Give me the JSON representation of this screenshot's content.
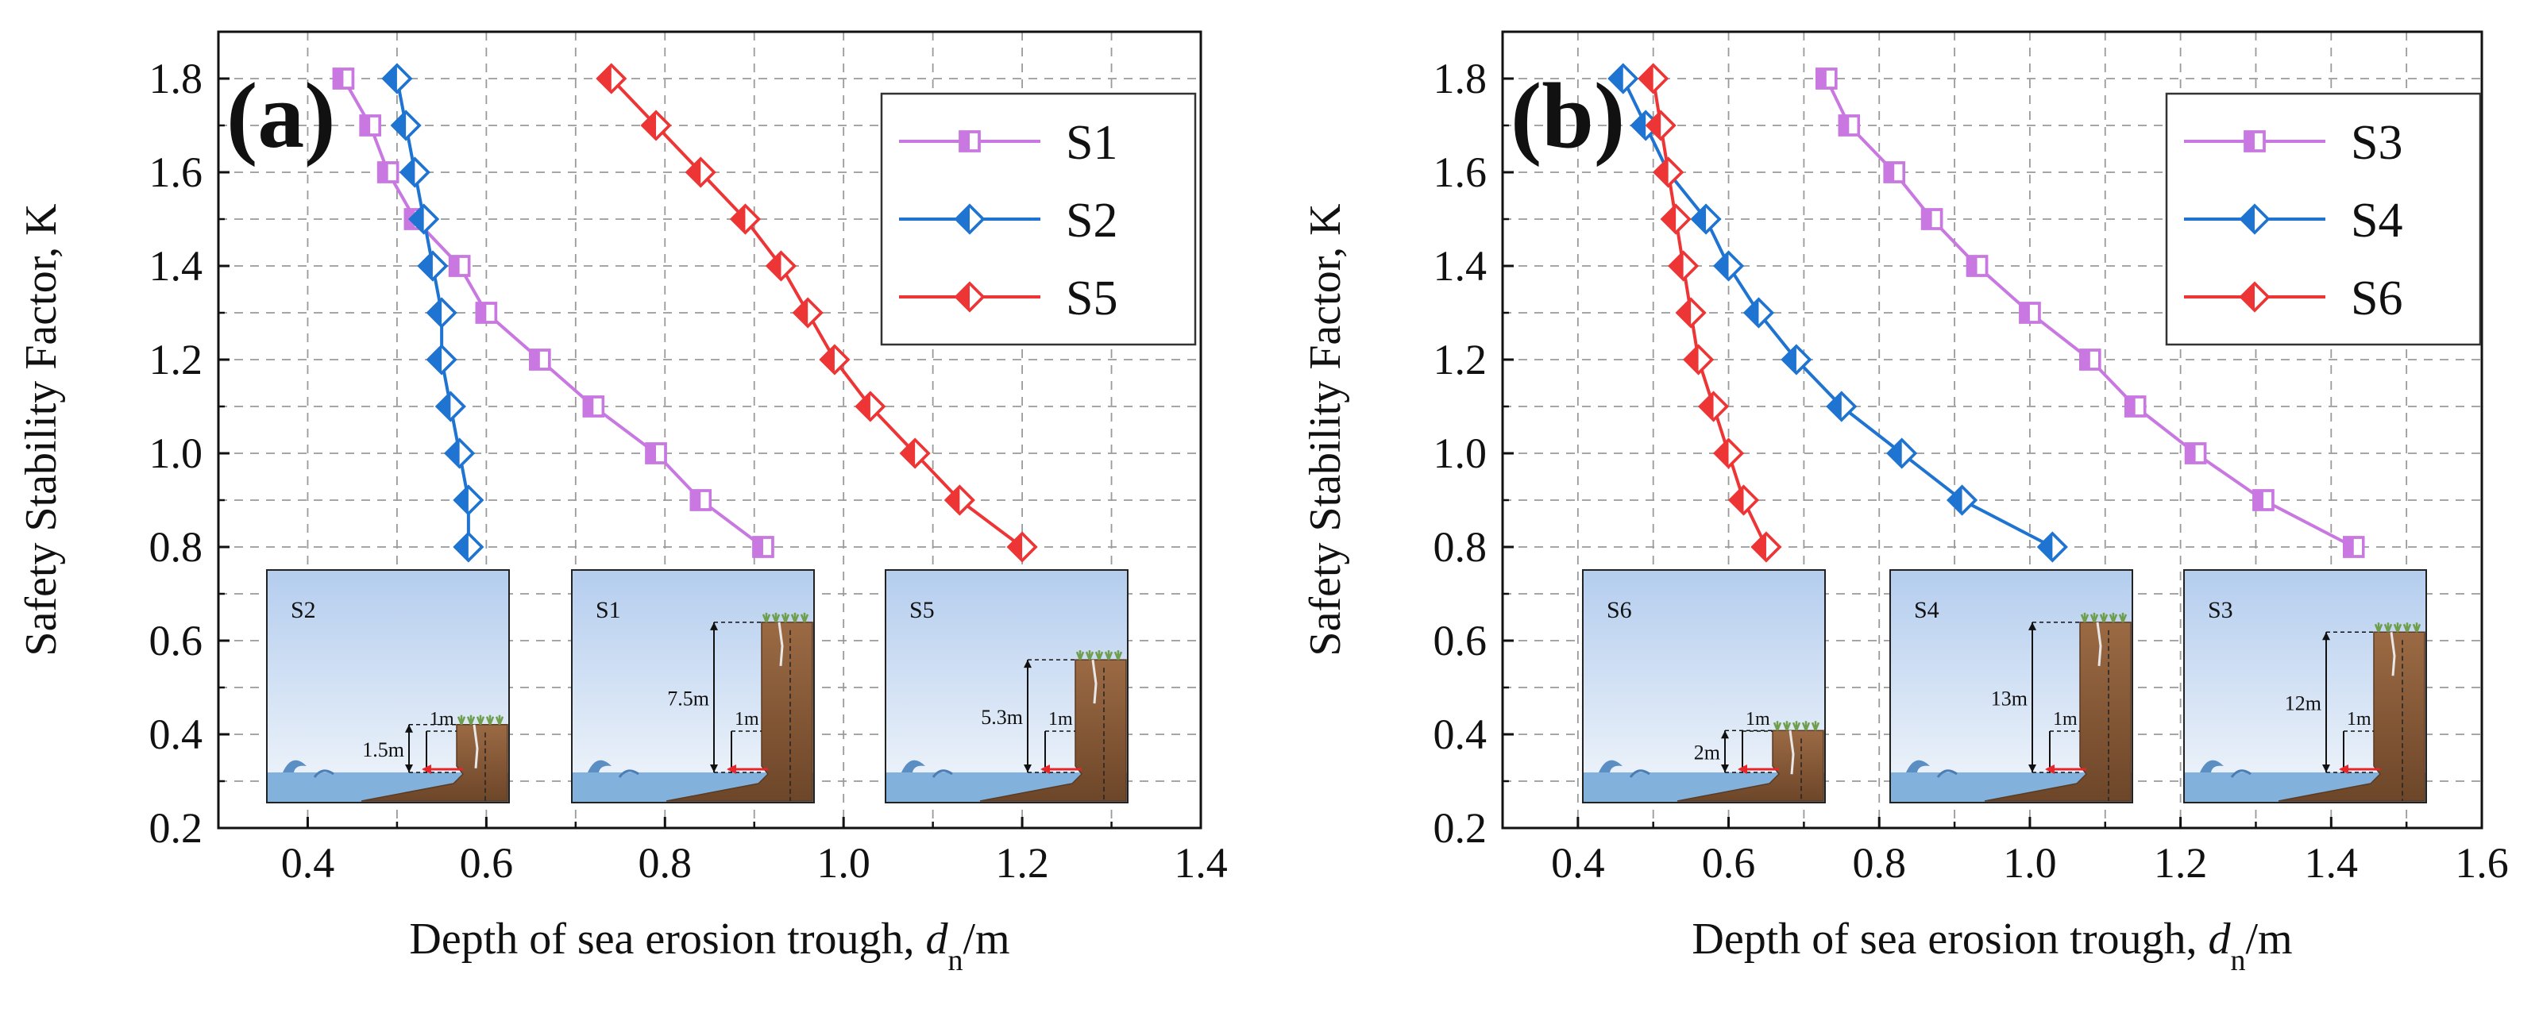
{
  "colors": {
    "s1": "#c878e0",
    "s1_fill": "#ebc8f8",
    "s2": "#1e74d0",
    "s5": "#ee3535",
    "grid": "#9a9a9a",
    "sky_top": "#b4cdee",
    "sky_bottom": "#f2f6fb",
    "sea": "#6fa6d6",
    "rock": "#9b6a44",
    "rock_dark": "#6d4629",
    "grass": "#6f9f4e",
    "arrow": "#e8262a"
  },
  "chart_data": [
    {
      "type": "line",
      "panel_label": "(a)",
      "xlabel_prefix": "Depth of sea erosion trough, ",
      "xlabel_var": "d",
      "xlabel_sub": "n",
      "xlabel_suffix": "/m",
      "ylabel": "Safety Stability Factor, K",
      "xlim": [
        0.3,
        1.4
      ],
      "ylim": [
        0.2,
        1.9
      ],
      "xticks": [
        0.4,
        0.6,
        0.8,
        1.0,
        1.2,
        1.4
      ],
      "xtick_labels": [
        "0.4",
        "0.6",
        "0.8",
        "1.0",
        "1.2",
        "1.4"
      ],
      "yticks": [
        0.2,
        0.4,
        0.6,
        0.8,
        1.0,
        1.2,
        1.4,
        1.6,
        1.8
      ],
      "ytick_labels": [
        "0.2",
        "0.4",
        "0.6",
        "0.8",
        "1.0",
        "1.2",
        "1.4",
        "1.6",
        "1.8"
      ],
      "legend": [
        "S1",
        "S2",
        "S5"
      ],
      "series": [
        {
          "name": "S1",
          "marker": "square",
          "color_key": "s1",
          "x": [
            0.44,
            0.47,
            0.49,
            0.52,
            0.57,
            0.6,
            0.66,
            0.72,
            0.79,
            0.84,
            0.91
          ],
          "y": [
            1.8,
            1.7,
            1.6,
            1.5,
            1.4,
            1.3,
            1.2,
            1.1,
            1.0,
            0.9,
            0.8
          ]
        },
        {
          "name": "S2",
          "marker": "diamond",
          "color_key": "s2",
          "x": [
            0.5,
            0.51,
            0.52,
            0.53,
            0.54,
            0.55,
            0.55,
            0.56,
            0.57,
            0.58,
            0.58
          ],
          "y": [
            1.8,
            1.7,
            1.6,
            1.5,
            1.4,
            1.3,
            1.2,
            1.1,
            1.0,
            0.9,
            0.8
          ]
        },
        {
          "name": "S5",
          "marker": "diamond",
          "color_key": "s5",
          "x": [
            0.74,
            0.79,
            0.84,
            0.89,
            0.93,
            0.96,
            0.99,
            1.03,
            1.08,
            1.13,
            1.2
          ],
          "y": [
            1.8,
            1.7,
            1.6,
            1.5,
            1.4,
            1.3,
            1.2,
            1.1,
            1.0,
            0.9,
            0.8
          ]
        }
      ],
      "insets": [
        {
          "name": "S2",
          "height_label": "1.5m",
          "trough_label": "1m",
          "cliff_height": 1.5
        },
        {
          "name": "S1",
          "height_label": "7.5m",
          "trough_label": "1m",
          "cliff_height": 7.5
        },
        {
          "name": "S5",
          "height_label": "5.3m",
          "trough_label": "1m",
          "cliff_height": 5.3
        }
      ]
    },
    {
      "type": "line",
      "panel_label": "(b)",
      "xlabel_prefix": "Depth of sea erosion trough, ",
      "xlabel_var": "d",
      "xlabel_sub": "n",
      "xlabel_suffix": "/m",
      "ylabel": "Safety Stability Factor, K",
      "xlim": [
        0.3,
        1.6
      ],
      "ylim": [
        0.2,
        1.9
      ],
      "xticks": [
        0.4,
        0.6,
        0.8,
        1.0,
        1.2,
        1.4,
        1.6
      ],
      "xtick_labels": [
        "0.4",
        "0.6",
        "0.8",
        "1.0",
        "1.2",
        "1.4",
        "1.6"
      ],
      "yticks": [
        0.2,
        0.4,
        0.6,
        0.8,
        1.0,
        1.2,
        1.4,
        1.6,
        1.8
      ],
      "ytick_labels": [
        "0.2",
        "0.4",
        "0.6",
        "0.8",
        "1.0",
        "1.2",
        "1.4",
        "1.6",
        "1.8"
      ],
      "legend": [
        "S3",
        "S4",
        "S6"
      ],
      "series": [
        {
          "name": "S3",
          "marker": "square",
          "color_key": "s1",
          "x": [
            0.73,
            0.76,
            0.82,
            0.87,
            0.93,
            1.0,
            1.08,
            1.14,
            1.22,
            1.31,
            1.43
          ],
          "y": [
            1.8,
            1.7,
            1.6,
            1.5,
            1.4,
            1.3,
            1.2,
            1.1,
            1.0,
            0.9,
            0.8
          ]
        },
        {
          "name": "S4",
          "marker": "diamond",
          "color_key": "s2",
          "x": [
            0.46,
            0.49,
            0.52,
            0.57,
            0.6,
            0.64,
            0.69,
            0.75,
            0.83,
            0.91,
            1.03
          ],
          "y": [
            1.8,
            1.7,
            1.6,
            1.5,
            1.4,
            1.3,
            1.2,
            1.1,
            1.0,
            0.9,
            0.8
          ]
        },
        {
          "name": "S6",
          "marker": "diamond",
          "color_key": "s5",
          "x": [
            0.5,
            0.51,
            0.52,
            0.53,
            0.54,
            0.55,
            0.56,
            0.58,
            0.6,
            0.62,
            0.65
          ],
          "y": [
            1.8,
            1.7,
            1.6,
            1.5,
            1.4,
            1.3,
            1.2,
            1.1,
            1.0,
            0.9,
            0.8
          ]
        }
      ],
      "insets": [
        {
          "name": "S6",
          "height_label": "2m",
          "trough_label": "1m",
          "cliff_height": 2
        },
        {
          "name": "S4",
          "height_label": "13m",
          "trough_label": "1m",
          "cliff_height": 13
        },
        {
          "name": "S3",
          "height_label": "12m",
          "trough_label": "1m",
          "cliff_height": 12
        }
      ]
    }
  ]
}
